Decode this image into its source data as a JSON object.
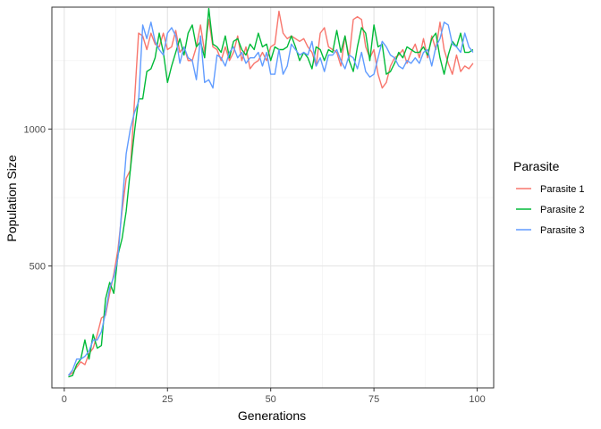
{
  "chart_data": {
    "type": "line",
    "xlabel": "Generations",
    "ylabel": "Population Size",
    "xlim": [
      -3,
      104
    ],
    "ylim": [
      55,
      1445
    ],
    "x_ticks": [
      0,
      25,
      50,
      75,
      100
    ],
    "x_tick_labels": [
      "0",
      "25",
      "50",
      "75",
      "100"
    ],
    "y_ticks": [
      500,
      1000
    ],
    "y_tick_labels": [
      "500",
      "1000"
    ],
    "x_minor_ticks": [
      12.5,
      37.5,
      62.5,
      87.5
    ],
    "y_minor_ticks": [
      250,
      750,
      1250
    ],
    "grid": true,
    "legend": {
      "title": "Parasite",
      "position": "right"
    },
    "x": [
      1,
      2,
      3,
      4,
      5,
      6,
      7,
      8,
      9,
      10,
      11,
      12,
      13,
      14,
      15,
      16,
      17,
      18,
      19,
      20,
      21,
      22,
      23,
      24,
      25,
      26,
      27,
      28,
      29,
      30,
      31,
      32,
      33,
      34,
      35,
      36,
      37,
      38,
      39,
      40,
      41,
      42,
      43,
      44,
      45,
      46,
      47,
      48,
      49,
      50,
      51,
      52,
      53,
      54,
      55,
      56,
      57,
      58,
      59,
      60,
      61,
      62,
      63,
      64,
      65,
      66,
      67,
      68,
      69,
      70,
      71,
      72,
      73,
      74,
      75,
      76,
      77,
      78,
      79,
      80,
      81,
      82,
      83,
      84,
      85,
      86,
      87,
      88,
      89,
      90,
      91,
      92,
      93,
      94,
      95,
      96,
      97,
      98,
      99
    ],
    "series": [
      {
        "name": "Parasite 1",
        "color": "#F8766D",
        "values": [
          100,
          110,
          130,
          150,
          140,
          180,
          200,
          250,
          310,
          320,
          400,
          470,
          560,
          700,
          820,
          850,
          1100,
          1350,
          1340,
          1290,
          1350,
          1310,
          1300,
          1350,
          1290,
          1300,
          1360,
          1280,
          1300,
          1250,
          1250,
          1300,
          1380,
          1280,
          1400,
          1300,
          1290,
          1250,
          1300,
          1250,
          1280,
          1340,
          1250,
          1300,
          1220,
          1240,
          1250,
          1280,
          1250,
          1300,
          1310,
          1430,
          1350,
          1330,
          1340,
          1330,
          1320,
          1330,
          1300,
          1280,
          1230,
          1350,
          1370,
          1300,
          1290,
          1280,
          1230,
          1340,
          1260,
          1400,
          1410,
          1400,
          1300,
          1260,
          1290,
          1200,
          1150,
          1170,
          1230,
          1260,
          1270,
          1290,
          1240,
          1280,
          1310,
          1260,
          1330,
          1260,
          1340,
          1290,
          1390,
          1290,
          1240,
          1200,
          1270,
          1210,
          1230,
          1220,
          1240
        ]
      },
      {
        "name": "Parasite 2",
        "color": "#00BA38",
        "values": [
          95,
          100,
          140,
          160,
          230,
          160,
          250,
          200,
          210,
          380,
          440,
          400,
          540,
          600,
          700,
          850,
          990,
          1110,
          1110,
          1210,
          1220,
          1260,
          1350,
          1280,
          1170,
          1230,
          1280,
          1330,
          1270,
          1350,
          1380,
          1300,
          1320,
          1260,
          1440,
          1310,
          1300,
          1280,
          1340,
          1260,
          1320,
          1330,
          1290,
          1270,
          1310,
          1290,
          1350,
          1300,
          1310,
          1250,
          1300,
          1290,
          1290,
          1300,
          1340,
          1300,
          1250,
          1280,
          1260,
          1220,
          1300,
          1290,
          1250,
          1290,
          1280,
          1360,
          1280,
          1340,
          1250,
          1210,
          1300,
          1370,
          1350,
          1250,
          1380,
          1300,
          1310,
          1200,
          1210,
          1240,
          1280,
          1260,
          1300,
          1290,
          1280,
          1280,
          1300,
          1270,
          1330,
          1350,
          1260,
          1200,
          1270,
          1320,
          1300,
          1350,
          1280,
          1280,
          1290
        ]
      },
      {
        "name": "Parasite 3",
        "color": "#619CFF",
        "values": [
          100,
          120,
          160,
          160,
          170,
          190,
          230,
          230,
          260,
          330,
          420,
          460,
          530,
          720,
          910,
          1000,
          1060,
          1100,
          1380,
          1330,
          1390,
          1320,
          1290,
          1270,
          1350,
          1370,
          1340,
          1240,
          1300,
          1260,
          1250,
          1180,
          1340,
          1170,
          1180,
          1150,
          1270,
          1260,
          1230,
          1280,
          1300,
          1260,
          1280,
          1240,
          1260,
          1260,
          1280,
          1230,
          1280,
          1200,
          1200,
          1290,
          1200,
          1230,
          1310,
          1290,
          1270,
          1280,
          1270,
          1320,
          1230,
          1260,
          1210,
          1270,
          1270,
          1290,
          1250,
          1220,
          1270,
          1260,
          1220,
          1280,
          1210,
          1190,
          1200,
          1260,
          1320,
          1300,
          1270,
          1260,
          1230,
          1220,
          1250,
          1240,
          1260,
          1240,
          1280,
          1290,
          1230,
          1300,
          1330,
          1390,
          1380,
          1310,
          1300,
          1280,
          1350,
          1300,
          1280
        ]
      }
    ]
  }
}
